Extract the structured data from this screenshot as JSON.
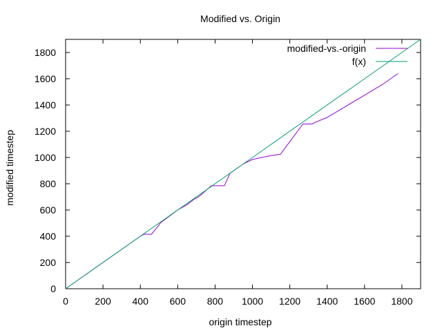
{
  "chart_data": {
    "type": "line",
    "title": "Modified vs. Origin",
    "xlabel": "origin timestep",
    "ylabel": "modified timestep",
    "xlim": [
      0,
      1900
    ],
    "ylim": [
      0,
      1900
    ],
    "xticks": [
      0,
      200,
      400,
      600,
      800,
      1000,
      1200,
      1400,
      1600,
      1800
    ],
    "yticks": [
      0,
      200,
      400,
      600,
      800,
      1000,
      1200,
      1400,
      1600,
      1800
    ],
    "grid": false,
    "legend": "top-right",
    "series": [
      {
        "name": "modified-vs.-origin",
        "color": "#9400d3",
        "points": [
          [
            0,
            0
          ],
          [
            100,
            100
          ],
          [
            200,
            200
          ],
          [
            300,
            300
          ],
          [
            400,
            400
          ],
          [
            420,
            415
          ],
          [
            460,
            415
          ],
          [
            510,
            505
          ],
          [
            600,
            600
          ],
          [
            650,
            640
          ],
          [
            690,
            685
          ],
          [
            700,
            690
          ],
          [
            720,
            710
          ],
          [
            780,
            785
          ],
          [
            800,
            785
          ],
          [
            850,
            785
          ],
          [
            880,
            880
          ],
          [
            950,
            950
          ],
          [
            1000,
            985
          ],
          [
            1050,
            1000
          ],
          [
            1100,
            1015
          ],
          [
            1150,
            1025
          ],
          [
            1200,
            1120
          ],
          [
            1270,
            1255
          ],
          [
            1320,
            1255
          ],
          [
            1340,
            1270
          ],
          [
            1400,
            1305
          ],
          [
            1500,
            1390
          ],
          [
            1600,
            1475
          ],
          [
            1700,
            1560
          ],
          [
            1780,
            1640
          ]
        ]
      },
      {
        "name": "f(x)",
        "color": "#009e73",
        "points": [
          [
            0,
            0
          ],
          [
            1900,
            1900
          ]
        ]
      }
    ]
  }
}
